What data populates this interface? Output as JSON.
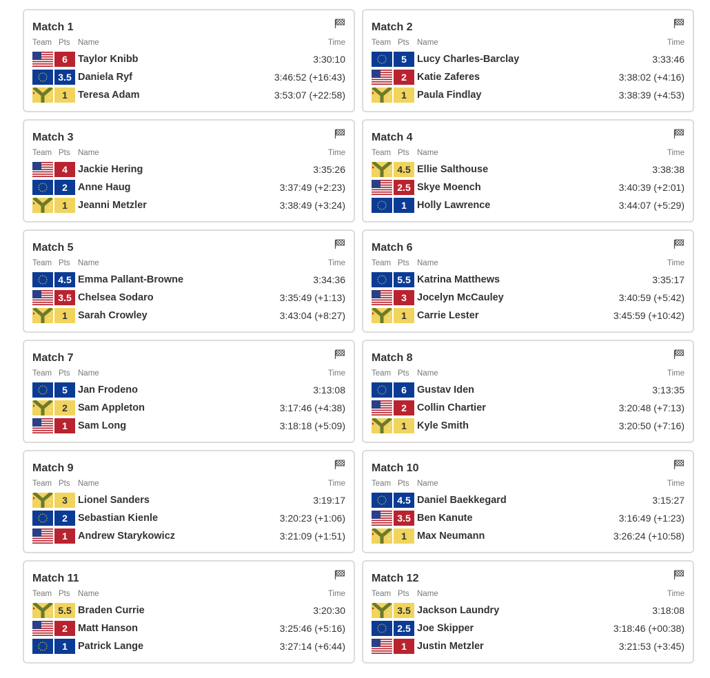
{
  "headers": {
    "team": "Team",
    "pts": "Pts",
    "name": "Name",
    "time": "Time"
  },
  "colors": {
    "usa": "#b8232f",
    "eur": "#0b3b94",
    "int": "#f1d45d"
  },
  "matches": [
    {
      "title": "Match 1",
      "rows": [
        {
          "team": "usa",
          "pts": "6",
          "name": "Taylor Knibb",
          "time": "3:30:10"
        },
        {
          "team": "eur",
          "pts": "3.5",
          "name": "Daniela Ryf",
          "time": "3:46:52 (+16:43)"
        },
        {
          "team": "int",
          "pts": "1",
          "name": "Teresa Adam",
          "time": "3:53:07 (+22:58)"
        }
      ]
    },
    {
      "title": "Match 2",
      "rows": [
        {
          "team": "eur",
          "pts": "5",
          "name": "Lucy Charles-Barclay",
          "time": "3:33:46"
        },
        {
          "team": "usa",
          "pts": "2",
          "name": "Katie Zaferes",
          "time": "3:38:02 (+4:16)"
        },
        {
          "team": "int",
          "pts": "1",
          "name": "Paula Findlay",
          "time": "3:38:39 (+4:53)"
        }
      ]
    },
    {
      "title": "Match 3",
      "rows": [
        {
          "team": "usa",
          "pts": "4",
          "name": "Jackie Hering",
          "time": "3:35:26"
        },
        {
          "team": "eur",
          "pts": "2",
          "name": "Anne Haug",
          "time": "3:37:49 (+2:23)"
        },
        {
          "team": "int",
          "pts": "1",
          "name": "Jeanni Metzler",
          "time": "3:38:49 (+3:24)"
        }
      ]
    },
    {
      "title": "Match 4",
      "rows": [
        {
          "team": "int",
          "pts": "4.5",
          "name": "Ellie Salthouse",
          "time": "3:38:38"
        },
        {
          "team": "usa",
          "pts": "2.5",
          "name": "Skye Moench",
          "time": "3:40:39 (+2:01)"
        },
        {
          "team": "eur",
          "pts": "1",
          "name": "Holly Lawrence",
          "time": "3:44:07 (+5:29)"
        }
      ]
    },
    {
      "title": "Match 5",
      "rows": [
        {
          "team": "eur",
          "pts": "4.5",
          "name": "Emma Pallant-Browne",
          "time": "3:34:36"
        },
        {
          "team": "usa",
          "pts": "3.5",
          "name": "Chelsea Sodaro",
          "time": "3:35:49 (+1:13)"
        },
        {
          "team": "int",
          "pts": "1",
          "name": "Sarah Crowley",
          "time": "3:43:04 (+8:27)"
        }
      ]
    },
    {
      "title": "Match 6",
      "rows": [
        {
          "team": "eur",
          "pts": "5.5",
          "name": "Katrina Matthews",
          "time": "3:35:17"
        },
        {
          "team": "usa",
          "pts": "3",
          "name": "Jocelyn McCauley",
          "time": "3:40:59 (+5:42)"
        },
        {
          "team": "int",
          "pts": "1",
          "name": "Carrie Lester",
          "time": "3:45:59 (+10:42)"
        }
      ]
    },
    {
      "title": "Match 7",
      "rows": [
        {
          "team": "eur",
          "pts": "5",
          "name": "Jan Frodeno",
          "time": "3:13:08"
        },
        {
          "team": "int",
          "pts": "2",
          "name": "Sam Appleton",
          "time": "3:17:46 (+4:38)"
        },
        {
          "team": "usa",
          "pts": "1",
          "name": "Sam Long",
          "time": "3:18:18 (+5:09)"
        }
      ]
    },
    {
      "title": "Match 8",
      "rows": [
        {
          "team": "eur",
          "pts": "6",
          "name": "Gustav Iden",
          "time": "3:13:35"
        },
        {
          "team": "usa",
          "pts": "2",
          "name": "Collin Chartier",
          "time": "3:20:48 (+7:13)"
        },
        {
          "team": "int",
          "pts": "1",
          "name": "Kyle Smith",
          "time": "3:20:50 (+7:16)"
        }
      ]
    },
    {
      "title": "Match 9",
      "rows": [
        {
          "team": "int",
          "pts": "3",
          "name": "Lionel Sanders",
          "time": "3:19:17"
        },
        {
          "team": "eur",
          "pts": "2",
          "name": "Sebastian Kienle",
          "time": "3:20:23 (+1:06)"
        },
        {
          "team": "usa",
          "pts": "1",
          "name": "Andrew Starykowicz",
          "time": "3:21:09 (+1:51)"
        }
      ]
    },
    {
      "title": "Match 10",
      "rows": [
        {
          "team": "eur",
          "pts": "4.5",
          "name": "Daniel Baekkegard",
          "time": "3:15:27"
        },
        {
          "team": "usa",
          "pts": "3.5",
          "name": "Ben Kanute",
          "time": "3:16:49 (+1:23)"
        },
        {
          "team": "int",
          "pts": "1",
          "name": "Max Neumann",
          "time": "3:26:24 (+10:58)"
        }
      ]
    },
    {
      "title": "Match 11",
      "rows": [
        {
          "team": "int",
          "pts": "5.5",
          "name": "Braden Currie",
          "time": "3:20:30"
        },
        {
          "team": "usa",
          "pts": "2",
          "name": "Matt Hanson",
          "time": "3:25:46 (+5:16)"
        },
        {
          "team": "eur",
          "pts": "1",
          "name": "Patrick Lange",
          "time": "3:27:14 (+6:44)"
        }
      ]
    },
    {
      "title": "Match 12",
      "rows": [
        {
          "team": "int",
          "pts": "3.5",
          "name": "Jackson Laundry",
          "time": "3:18:08"
        },
        {
          "team": "eur",
          "pts": "2.5",
          "name": "Joe Skipper",
          "time": "3:18:46 (+00:38)"
        },
        {
          "team": "usa",
          "pts": "1",
          "name": "Justin Metzler",
          "time": "3:21:53 (+3:45)"
        }
      ]
    }
  ]
}
